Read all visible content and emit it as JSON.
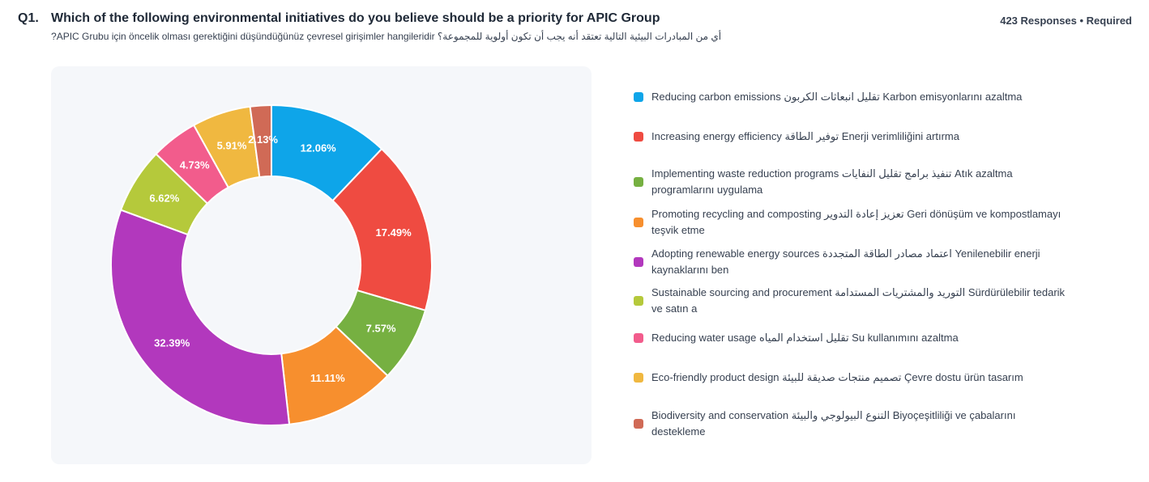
{
  "question": {
    "number": "Q1.",
    "title": "Which of the following environmental initiatives do you believe should be a priority for APIC Group",
    "subtitle": "أي من المبادرات البيئية التالية تعتقد أنه يجب أن تكون أولوية للمجموعة؟ APIC Grubu için öncelik olması gerektiğini düşündüğünüz çevresel girişimler hangileridir?",
    "meta": "423 Responses • Required"
  },
  "chart_data": {
    "type": "pie",
    "style": "donut",
    "legend_position": "right",
    "slices": [
      {
        "label": "Reducing carbon emissions تقليل انبعاثات الكربون Karbon emisyonlarını azaltma",
        "value": 12.06,
        "display": "12.06%",
        "color": "#0ea5e9"
      },
      {
        "label": "Increasing energy efficiency توفير الطاقة Enerji verimliliğini artırma",
        "value": 17.49,
        "display": "17.49%",
        "color": "#ef4b41"
      },
      {
        "label": "Implementing waste reduction programs تنفيذ برامج تقليل النفايات Atık azaltma programlarını uygulama",
        "value": 7.57,
        "display": "7.57%",
        "color": "#76b041"
      },
      {
        "label": "Promoting recycling and composting تعزيز إعادة التدوير Geri dönüşüm ve kompostlamayı teşvik etme",
        "value": 11.11,
        "display": "11.11%",
        "color": "#f78f2e"
      },
      {
        "label": "Adopting renewable energy sources اعتماد مصادر الطاقة المتجددة Yenilenebilir enerji kaynaklarını ben",
        "value": 32.39,
        "display": "32.39%",
        "color": "#b238bd"
      },
      {
        "label": "Sustainable sourcing and procurement التوريد والمشتريات المستدامة Sürdürülebilir tedarik ve satın a",
        "value": 6.62,
        "display": "6.62%",
        "color": "#b5c93b"
      },
      {
        "label": "Reducing water usage تقليل استخدام المياه Su kullanımını azaltma",
        "value": 4.73,
        "display": "4.73%",
        "color": "#f25c8c"
      },
      {
        "label": "Eco-friendly product design تصميم منتجات صديقة للبيئة Çevre dostu ürün tasarım",
        "value": 5.91,
        "display": "5.91%",
        "color": "#f0b840"
      },
      {
        "label": "Biodiversity and conservation التنوع البيولوجي والبيئة Biyoçeşitliliği ve çabalarını destekleme",
        "value": 2.13,
        "display": "2.13%",
        "color": "#d06a56"
      }
    ]
  }
}
